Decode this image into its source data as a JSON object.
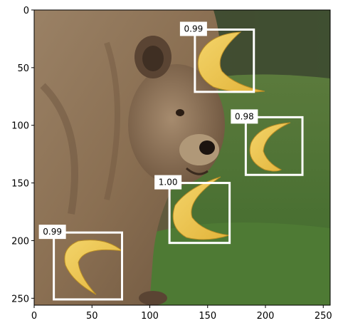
{
  "chart_data": {
    "type": "image-with-detections",
    "title": "",
    "xlabel": "",
    "ylabel": "",
    "xlim": [
      0,
      256
    ],
    "ylim": [
      256,
      0
    ],
    "x_ticks": [
      0,
      50,
      100,
      150,
      200,
      250
    ],
    "y_ticks": [
      0,
      50,
      100,
      150,
      200,
      250
    ],
    "image_content": "photo of a brown bear on grass with banana cutouts pasted on it",
    "box_color": "#ffffff",
    "detections": [
      {
        "score": "0.99",
        "x0": 139,
        "y0": 17,
        "x1": 190,
        "y1": 71
      },
      {
        "score": "0.98",
        "x0": 183,
        "y0": 93,
        "x1": 232,
        "y1": 143
      },
      {
        "score": "1.00",
        "x0": 117,
        "y0": 150,
        "x1": 169,
        "y1": 202
      },
      {
        "score": "0.99",
        "x0": 17,
        "y0": 193,
        "x1": 76,
        "y1": 251
      }
    ]
  }
}
